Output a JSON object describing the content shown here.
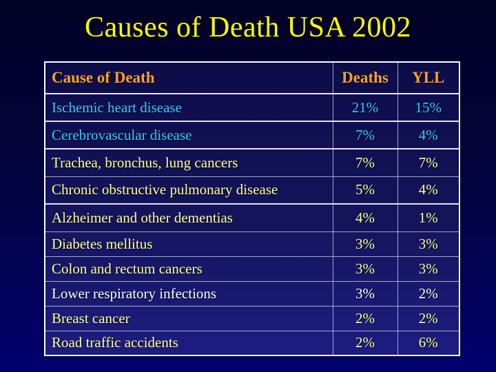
{
  "slide": {
    "title": "Causes of Death USA 2002"
  },
  "table": {
    "columns": [
      "Cause of Death",
      "Deaths",
      "YLL"
    ],
    "rows": [
      {
        "cause": "Ischemic heart disease",
        "deaths": "21%",
        "yll": "15%",
        "color": "cyan"
      },
      {
        "cause": "Cerebrovascular disease",
        "deaths": "7%",
        "yll": "4%",
        "color": "cyan"
      },
      {
        "cause": "Trachea, bronchus, lung cancers",
        "deaths": "7%",
        "yll": "7%",
        "color": "yellow"
      },
      {
        "cause": "Chronic obstructive pulmonary disease",
        "deaths": "5%",
        "yll": "4%",
        "color": "yellow"
      },
      {
        "cause": "Alzheimer and other dementias",
        "deaths": "4%",
        "yll": "1%",
        "color": "yellow"
      },
      {
        "cause": "Diabetes mellitus",
        "deaths": "3%",
        "yll": "3%",
        "color": "yellow"
      },
      {
        "cause": "Colon and rectum cancers",
        "deaths": "3%",
        "yll": "3%",
        "color": "yellow"
      },
      {
        "cause": "Lower respiratory infections",
        "deaths": "3%",
        "yll": "2%",
        "color": "white"
      },
      {
        "cause": "Breast cancer",
        "deaths": "2%",
        "yll": "2%",
        "color": "yellow"
      },
      {
        "cause": "Road traffic accidents",
        "deaths": "2%",
        "yll": "6%",
        "color": "yellow"
      }
    ]
  },
  "colors": {
    "title": "#FFFF00",
    "header": "#FFA227",
    "cyan": "#33CCFF",
    "yellow": "#FFFF99",
    "white": "#FFFFFF",
    "background_top": "#02022A",
    "background_bottom": "#00006E",
    "table_border": "#FFFFFF"
  },
  "chart_data": {
    "type": "table",
    "title": "Causes of Death USA 2002",
    "columns": [
      "Cause of Death",
      "Deaths",
      "YLL"
    ],
    "rows": [
      [
        "Ischemic heart disease",
        "21%",
        "15%"
      ],
      [
        "Cerebrovascular disease",
        "7%",
        "4%"
      ],
      [
        "Trachea, bronchus, lung cancers",
        "7%",
        "7%"
      ],
      [
        "Chronic obstructive pulmonary disease",
        "5%",
        "4%"
      ],
      [
        "Alzheimer and other dementias",
        "4%",
        "1%"
      ],
      [
        "Diabetes mellitus",
        "3%",
        "3%"
      ],
      [
        "Colon and rectum cancers",
        "3%",
        "3%"
      ],
      [
        "Lower respiratory infections",
        "3%",
        "2%"
      ],
      [
        "Breast cancer",
        "2%",
        "2%"
      ],
      [
        "Road traffic accidents",
        "2%",
        "6%"
      ]
    ]
  }
}
